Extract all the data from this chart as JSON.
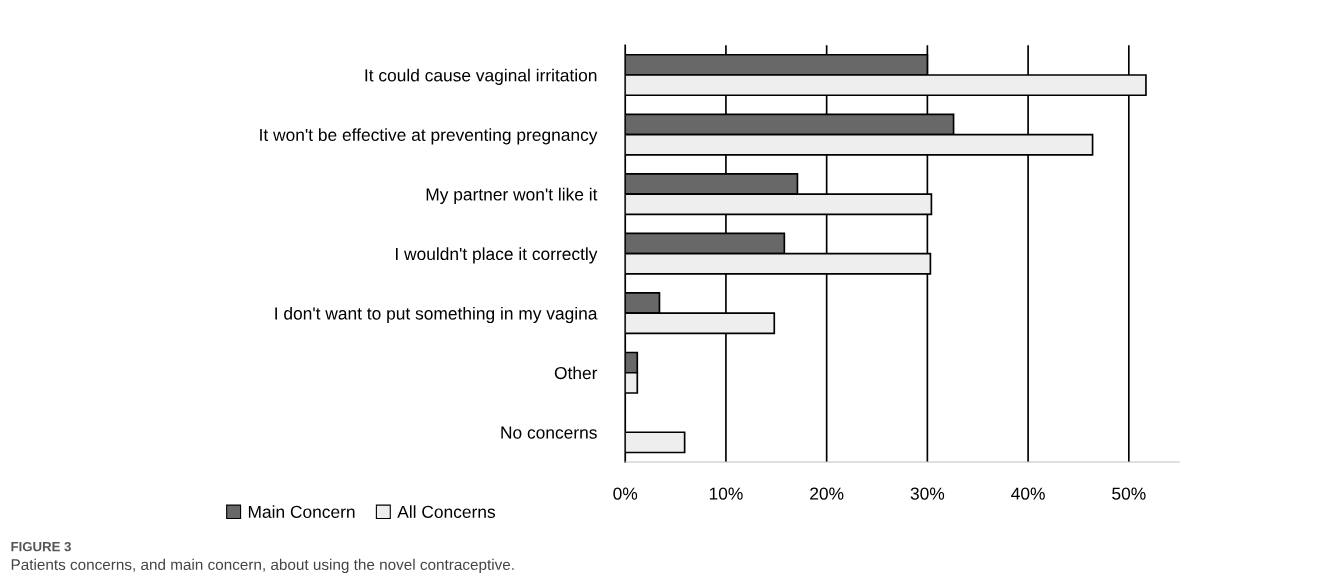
{
  "chart_data": {
    "type": "bar",
    "orientation": "horizontal",
    "categories": [
      "It could cause vaginal irritation",
      "It won't be effective at preventing pregnancy",
      "My partner won't like it",
      "I wouldn't place it correctly",
      "I don't want to put something in my vagina",
      "Other",
      "No concerns"
    ],
    "series": [
      {
        "name": "Main Concern",
        "color": "#686868",
        "values": [
          30.0,
          32.6,
          17.1,
          15.8,
          3.4,
          1.2,
          null
        ]
      },
      {
        "name": "All Concerns",
        "color": "#eeeeee",
        "values": [
          51.7,
          46.4,
          30.4,
          30.3,
          14.8,
          1.2,
          5.9
        ]
      }
    ],
    "xlim": [
      0,
      55
    ],
    "xticks": [
      {
        "value": 0,
        "label": "0%"
      },
      {
        "value": 10,
        "label": "10%"
      },
      {
        "value": 20,
        "label": "20%"
      },
      {
        "value": 30,
        "label": "30%"
      },
      {
        "value": 40,
        "label": "40%"
      },
      {
        "value": 50,
        "label": "50%"
      }
    ],
    "grid": "x",
    "legend": "bottom left",
    "annotations": [
      "FIGURE 3",
      "Patients concerns, and main concern, about using the novel contraceptive."
    ]
  }
}
